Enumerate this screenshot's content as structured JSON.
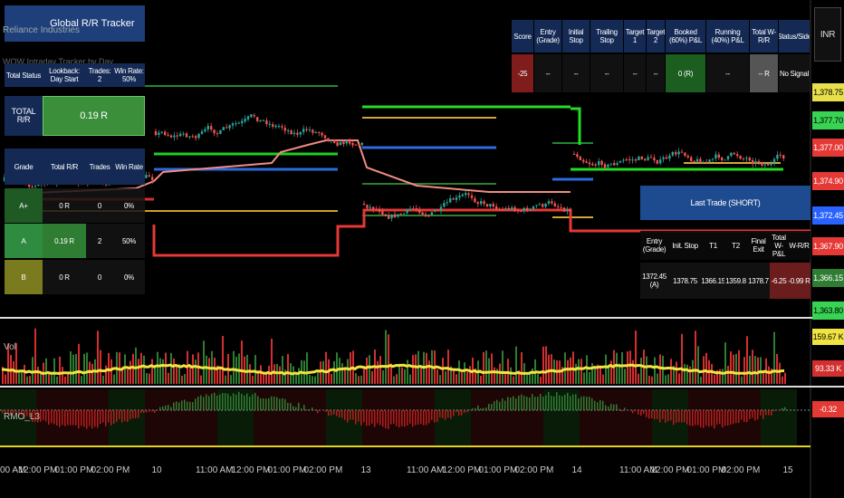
{
  "top_left": {
    "title_lines": [
      "Reliance Industries",
      "Global R/R Tracker",
      "WOW Intraday Tracker by Day"
    ],
    "status": [
      "Total Status",
      "Lookback: Day Start",
      "Trades: 2",
      "Win Rate: 50%"
    ],
    "total_label": "TOTAL R/R",
    "total_value": "0.19 R",
    "grade_header": [
      "Grade",
      "Total R/R",
      "Trades",
      "Win Rate"
    ],
    "grade_rows": [
      [
        "A+",
        "0 R",
        "0",
        "0%"
      ],
      [
        "A",
        "0.19 R",
        "2",
        "50%"
      ],
      [
        "B",
        "0 R",
        "0",
        "0%"
      ]
    ]
  },
  "status_table": {
    "header": [
      "Score",
      "Entry (Grade)",
      "Initial Stop",
      "Trailing Stop",
      "Target 1",
      "Target 2",
      "Booked (60%) P&L",
      "Running (40%) P&L",
      "Total W-R/R",
      "Status/Side"
    ],
    "row": [
      "-25",
      "--",
      "--",
      "--",
      "--",
      "--",
      "0 (R)",
      "--",
      "-- R",
      "No Signal"
    ]
  },
  "last_trade": {
    "title": "Last Trade (SHORT)",
    "header": [
      "Entry (Grade)",
      "Init. Stop",
      "T1",
      "T2",
      "Final Exit",
      "Total W-P&L",
      "W-R/R"
    ],
    "row": [
      "1372.45 (A)",
      "1378.75",
      "1366.15",
      "1359.8",
      "1378.7",
      "-6.25",
      "-0.99 R"
    ]
  },
  "price_scale": {
    "currency": "INR",
    "labels": [
      "1,378.75",
      "1,377.70",
      "1,377.00",
      "1,374.90",
      "1,372.45",
      "1,367.90",
      "1,366.15",
      "1,363.80"
    ]
  },
  "volume": {
    "label": "Vol",
    "scale_labels": [
      "159.67 K",
      "93.33 K"
    ]
  },
  "oscillator": {
    "label": "RMO_L3",
    "scale_label": "-0.32"
  },
  "time_axis": [
    "00 AM",
    "12:00 PM",
    "01:00 PM",
    "02:00 PM",
    "10",
    "11:00 AM",
    "12:00 PM",
    "01:00 PM",
    "02:00 PM",
    "13",
    "11:00 AM",
    "12:00 PM",
    "01:00 PM",
    "02:00 PM",
    "14",
    "11:00 AM",
    "12:00 PM",
    "01:00 PM",
    "02:00 PM",
    "15"
  ]
}
